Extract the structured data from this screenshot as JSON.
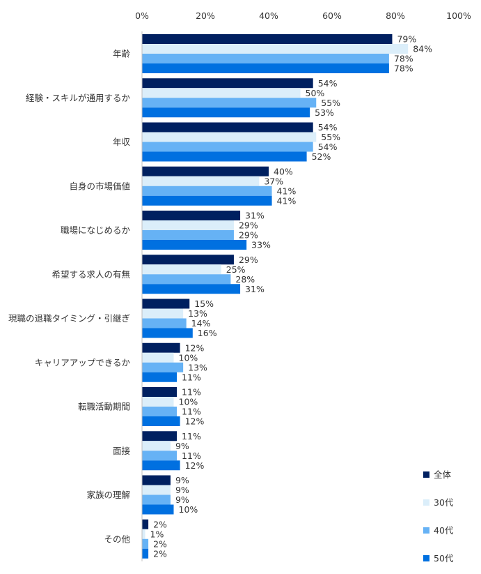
{
  "chart_data": {
    "type": "bar",
    "orientation": "horizontal",
    "title": "",
    "xlabel": "",
    "ylabel": "",
    "xlim": [
      0,
      100
    ],
    "x_ticks": [
      "0%",
      "20%",
      "40%",
      "60%",
      "80%",
      "100%"
    ],
    "x_tick_values": [
      0,
      20,
      40,
      60,
      80,
      100
    ],
    "grid": false,
    "legend_position": "bottom-right",
    "value_suffix": "%",
    "categories": [
      "年齢",
      "経験・スキルが通用するか",
      "年収",
      "自身の市場価値",
      "職場になじめるか",
      "希望する求人の有無",
      "現職の退職タイミング・引継ぎ",
      "キャリアアップできるか",
      "転職活動期間",
      "面接",
      "家族の理解",
      "その他"
    ],
    "series": [
      {
        "name": "全体",
        "color": "#002060",
        "values": [
          79,
          54,
          54,
          40,
          31,
          29,
          15,
          12,
          11,
          11,
          9,
          2
        ],
        "labels": [
          "79%",
          "54%",
          "54%",
          "40%",
          "31%",
          "29%",
          "15%",
          "12%",
          "11%",
          "11%",
          "9%",
          "2%"
        ]
      },
      {
        "name": "30代",
        "color": "#dbeefa",
        "values": [
          84,
          50,
          55,
          37,
          29,
          25,
          13,
          10,
          10,
          9,
          9,
          1
        ],
        "labels": [
          "84%",
          "50%",
          "55%",
          "37%",
          "29%",
          "25%",
          "13%",
          "10%",
          "10%",
          "9%",
          "9%",
          "1%"
        ]
      },
      {
        "name": "40代",
        "color": "#66b2f5",
        "values": [
          78,
          55,
          54,
          41,
          29,
          28,
          14,
          13,
          11,
          11,
          9,
          2
        ],
        "labels": [
          "78%",
          "55%",
          "54%",
          "41%",
          "29%",
          "28%",
          "14%",
          "13%",
          "11%",
          "11%",
          "9%",
          "2%"
        ]
      },
      {
        "name": "50代",
        "color": "#0070e0",
        "values": [
          78,
          53,
          52,
          41,
          33,
          31,
          16,
          11,
          12,
          12,
          10,
          2
        ],
        "labels": [
          "78%",
          "53%",
          "52%",
          "41%",
          "33%",
          "31%",
          "16%",
          "11%",
          "12%",
          "12%",
          "10%",
          "2%"
        ]
      }
    ]
  }
}
